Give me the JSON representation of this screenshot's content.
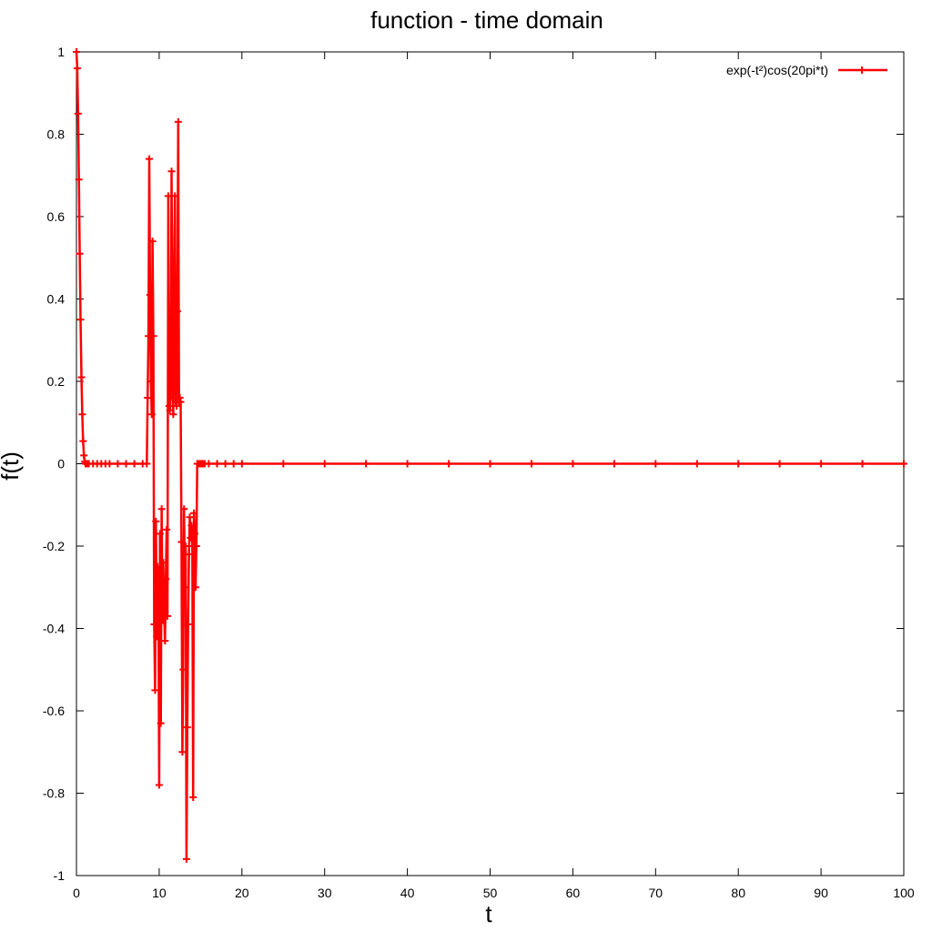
{
  "chart_data": {
    "type": "line",
    "title": "function - time domain",
    "xlabel": "t",
    "ylabel": "f(t)",
    "xlim": [
      0,
      100
    ],
    "ylim": [
      -1,
      1
    ],
    "x_ticks": [
      0,
      10,
      20,
      30,
      40,
      50,
      60,
      70,
      80,
      90,
      100
    ],
    "x_tick_labels": [
      "0",
      "10",
      "20",
      "30",
      "40",
      "50",
      "60",
      "70",
      "80",
      "90",
      "100"
    ],
    "y_ticks": [
      1,
      0.8,
      0.6,
      0.4,
      0.2,
      0,
      -0.2,
      -0.4,
      -0.6,
      -0.8,
      -1
    ],
    "y_tick_labels": [
      "1",
      "0.8",
      "0.6",
      "0.4",
      "0.2",
      "0",
      "-0.2",
      "-0.4",
      "-0.6",
      "-0.8",
      "-1"
    ],
    "grid": false,
    "legend_position": "top-right",
    "marker": "plus",
    "series": [
      {
        "name": "exp(-t²)cos(20pi*t)",
        "color": "#ff0000",
        "x": [
          0.0,
          0.1,
          0.2,
          0.3,
          0.4,
          0.5,
          0.6,
          0.7,
          0.8,
          0.9,
          1.0,
          1.1,
          1.2,
          1.3,
          1.4,
          1.5,
          2.0,
          2.5,
          3.0,
          3.5,
          4.0,
          5.0,
          6.0,
          7.0,
          8.0,
          8.5,
          8.6,
          8.7,
          8.8,
          8.9,
          9.0,
          9.1,
          9.2,
          9.3,
          9.4,
          9.5,
          9.6,
          9.7,
          9.8,
          9.9,
          10.0,
          10.1,
          10.2,
          10.3,
          10.4,
          10.5,
          10.6,
          10.7,
          10.8,
          10.9,
          11.0,
          11.1,
          11.2,
          11.3,
          11.4,
          11.5,
          11.6,
          11.7,
          11.8,
          11.9,
          12.0,
          12.1,
          12.2,
          12.3,
          12.4,
          12.5,
          12.6,
          12.7,
          12.8,
          12.9,
          13.0,
          13.1,
          13.2,
          13.3,
          13.4,
          13.5,
          13.6,
          13.7,
          13.8,
          13.9,
          14.0,
          14.1,
          14.2,
          14.3,
          14.4,
          14.5,
          14.6,
          14.7,
          14.8,
          14.9,
          15.0,
          15.1,
          15.2,
          15.3,
          15.4,
          15.5,
          16.0,
          17.0,
          18.0,
          19.0,
          20.0,
          25.0,
          30.0,
          35.0,
          40.0,
          45.0,
          50.0,
          55.0,
          60.0,
          65.0,
          70.0,
          75.0,
          80.0,
          85.0,
          90.0,
          95.0,
          100.0
        ],
        "y": [
          1.0,
          0.96,
          0.85,
          0.69,
          0.51,
          0.35,
          0.21,
          0.12,
          0.055,
          0.02,
          0.005,
          0.0,
          0.0,
          0.0,
          0.0,
          0.0,
          0.0,
          0.0,
          0.0,
          0.0,
          0.0,
          0.0,
          0.0,
          0.0,
          0.0,
          0.0,
          0.16,
          0.31,
          0.74,
          0.41,
          0.2,
          0.12,
          0.54,
          0.31,
          -0.39,
          -0.55,
          -0.14,
          -0.42,
          -0.25,
          -0.3,
          -0.78,
          -0.17,
          -0.63,
          -0.11,
          -0.38,
          -0.24,
          -0.37,
          -0.43,
          -0.28,
          -0.16,
          -0.37,
          0.65,
          0.14,
          0.13,
          0.16,
          0.71,
          0.35,
          0.12,
          0.45,
          0.65,
          0.15,
          0.14,
          0.37,
          0.83,
          0.15,
          0.16,
          0.15,
          -0.19,
          -0.7,
          -0.5,
          -0.11,
          -0.3,
          -0.2,
          -0.96,
          -0.64,
          -0.39,
          -0.22,
          -0.13,
          -0.18,
          -0.15,
          -0.2,
          -0.81,
          -0.12,
          -0.17,
          -0.3,
          -0.2,
          0.0,
          0.0,
          0.0,
          0.0,
          0.0,
          0.0,
          0.0,
          0.0,
          0.0,
          0.0,
          0.0,
          0.0,
          0.0,
          0.0,
          0.0,
          0.0,
          0.0,
          0.0,
          0.0,
          0.0,
          0.0,
          0.0,
          0.0,
          0.0,
          0.0,
          0.0,
          0.0,
          0.0,
          0.0,
          0.0,
          0.0
        ]
      }
    ]
  }
}
